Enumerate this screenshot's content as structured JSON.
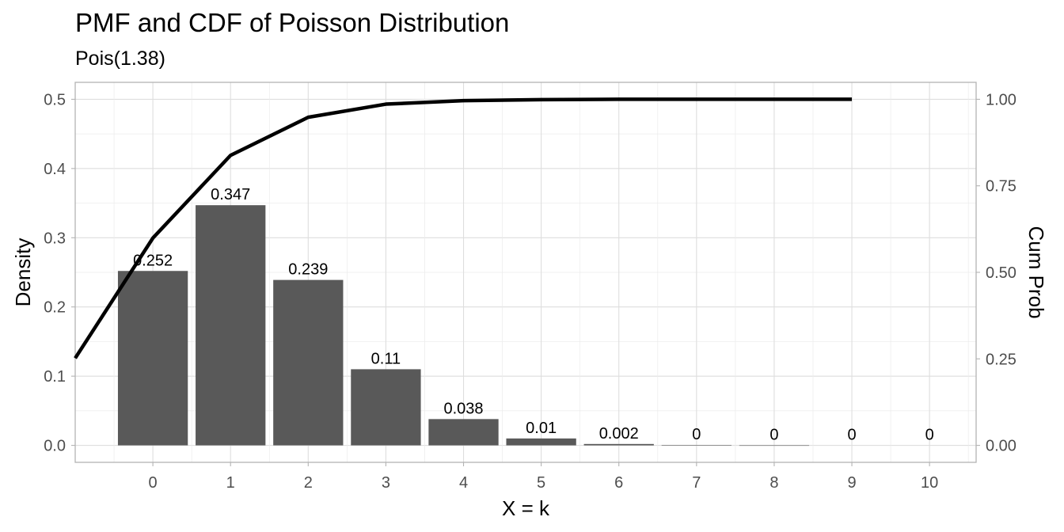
{
  "chart_data": {
    "type": "bar",
    "title": "PMF and CDF of Poisson Distribution",
    "subtitle": "Pois(1.38)",
    "xlabel": "X = k",
    "ylabel": "Density",
    "ylabel_right": "Cum Prob",
    "x": [
      0,
      1,
      2,
      3,
      4,
      5,
      6,
      7,
      8,
      9,
      10
    ],
    "x_ticks": [
      "0",
      "1",
      "2",
      "3",
      "4",
      "5",
      "6",
      "7",
      "8",
      "9",
      "10"
    ],
    "y_ticks": [
      "0.0",
      "0.1",
      "0.2",
      "0.3",
      "0.4",
      "0.5"
    ],
    "y_ticks_right": [
      "0.00",
      "0.25",
      "0.50",
      "0.75",
      "1.00"
    ],
    "ylim": [
      0,
      0.5
    ],
    "ylim_right": [
      0,
      1.0
    ],
    "series": [
      {
        "type": "bar",
        "values": [
          0.252,
          0.347,
          0.239,
          0.11,
          0.038,
          0.01,
          0.002,
          0.0005,
          0.0001,
          0,
          0
        ],
        "labels": [
          "0.252",
          "0.347",
          "0.239",
          "0.11",
          "0.038",
          "0.01",
          "0.002",
          "0",
          "0",
          "0",
          "0"
        ],
        "color": "#595959"
      },
      {
        "type": "line",
        "axis": "right",
        "x": [
          -1,
          0,
          1,
          2,
          3,
          4,
          5,
          6,
          7,
          8,
          9
        ],
        "values": [
          0.252,
          0.599,
          0.838,
          0.948,
          0.986,
          0.996,
          0.999,
          1.0,
          1.0,
          1.0,
          1.0
        ],
        "color": "#000000"
      }
    ],
    "grid": true
  }
}
